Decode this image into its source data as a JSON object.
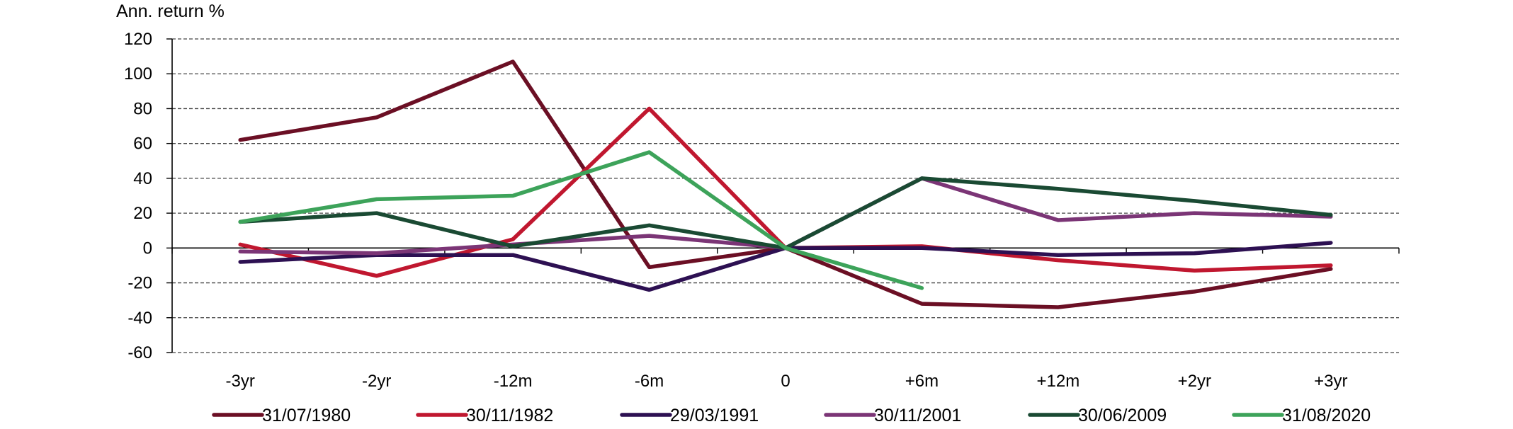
{
  "chart_data": {
    "type": "line",
    "ylabel": "Ann. return %",
    "ylim": [
      -60,
      120
    ],
    "yticks": [
      120,
      100,
      80,
      60,
      40,
      20,
      0,
      -20,
      -40,
      -60
    ],
    "categories": [
      "-3yr",
      "-2yr",
      "-12m",
      "-6m",
      "0",
      "+6m",
      "+12m",
      "+2yr",
      "+3yr"
    ],
    "grid": true,
    "legend_position": "bottom",
    "series": [
      {
        "name": "31/07/1980",
        "color": "#6b0f24",
        "values": [
          62,
          75,
          107,
          -11,
          0,
          -32,
          -34,
          -25,
          -12
        ]
      },
      {
        "name": "30/11/1982",
        "color": "#c0172f",
        "values": [
          2,
          -16,
          5,
          80,
          0,
          1,
          -7,
          -13,
          -10
        ]
      },
      {
        "name": "29/03/1991",
        "color": "#2d1052",
        "values": [
          -8,
          -4,
          -4,
          -24,
          0,
          0,
          -4,
          -3,
          3
        ]
      },
      {
        "name": "30/11/2001",
        "color": "#7b3576",
        "values": [
          -2,
          -3,
          2,
          7,
          0,
          40,
          16,
          20,
          18
        ]
      },
      {
        "name": "30/06/2009",
        "color": "#1a4a33",
        "values": [
          15,
          20,
          1,
          13,
          0,
          40,
          34,
          27,
          19
        ]
      },
      {
        "name": "31/08/2020",
        "color": "#3da35a",
        "values": [
          15,
          28,
          30,
          55,
          0,
          -23,
          null,
          null,
          null
        ]
      }
    ]
  }
}
